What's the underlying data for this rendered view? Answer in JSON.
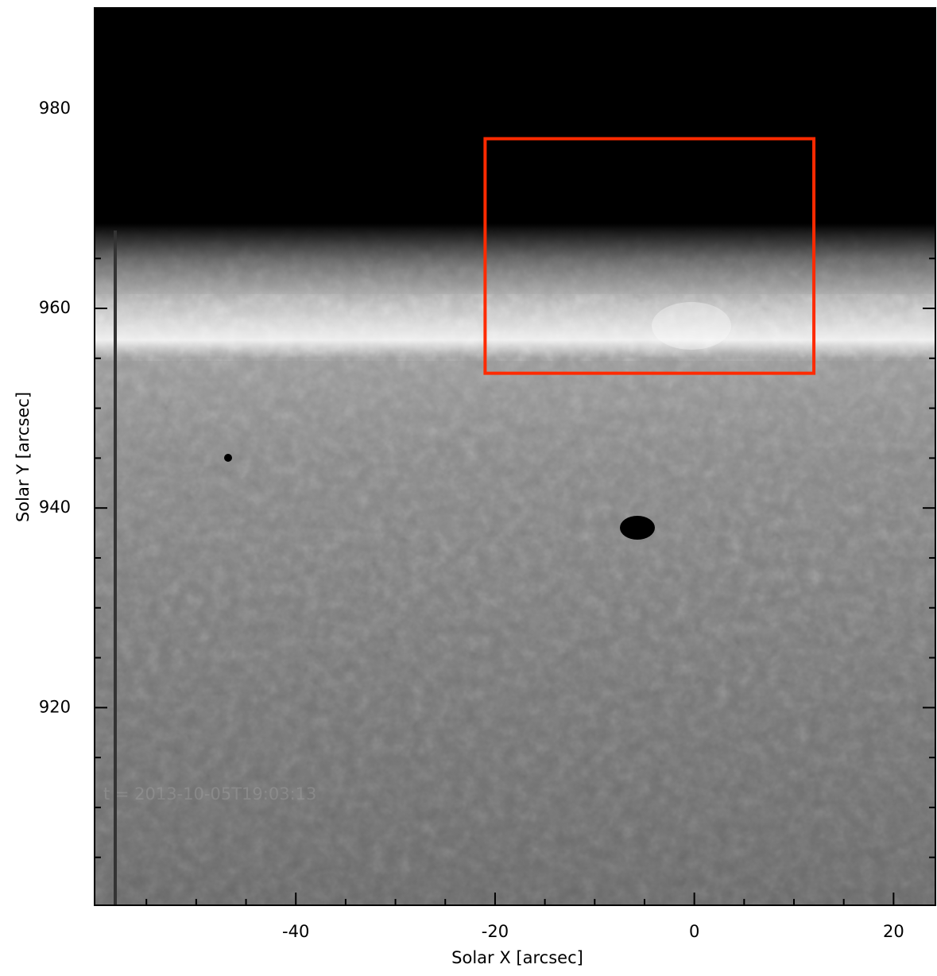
{
  "chart_data": {
    "type": "image",
    "xlabel": "Solar X [arcsec]",
    "ylabel": "Solar Y [arcsec]",
    "xlim": [
      -60.2,
      24.2
    ],
    "ylim": [
      900.2,
      990.1
    ],
    "xticks": [
      -40,
      -20,
      0,
      20
    ],
    "yticks": [
      920,
      940,
      960,
      980
    ],
    "xminorticks": [
      -55,
      -50,
      -45,
      -35,
      -30,
      -25,
      -15,
      -10,
      -5,
      5,
      10,
      15
    ],
    "yminorticks": [
      905,
      910,
      915,
      925,
      930,
      935,
      945,
      950,
      955,
      965,
      970,
      975,
      985
    ],
    "timestamp": "t = 2013-10-05T19:03:13",
    "highlight_box": {
      "x": [
        -21,
        12
      ],
      "y": [
        953.5,
        977
      ],
      "color": "#ff2a00"
    }
  }
}
